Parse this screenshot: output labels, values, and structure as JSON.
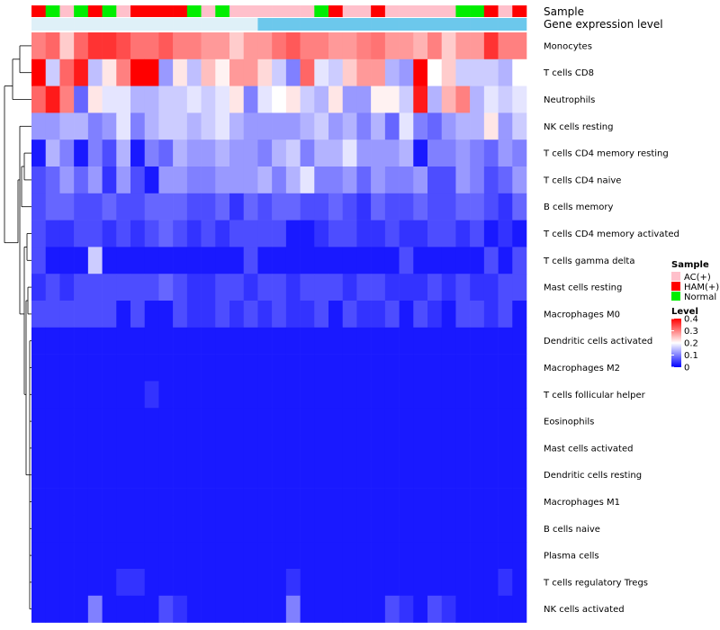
{
  "chart_data": {
    "type": "heatmap",
    "title": "",
    "annotation_labels": {
      "sample": "Sample",
      "gene_expression": "Gene expression level"
    },
    "sample_legend": {
      "title": "Sample",
      "entries": [
        {
          "label": "AC(+)",
          "color": "#ffc0cb"
        },
        {
          "label": "HAM(+)",
          "color": "#ff0000"
        },
        {
          "label": "Normal",
          "color": "#00ee00"
        }
      ]
    },
    "level_legend": {
      "title": "Level",
      "ticks": [
        "0.4",
        "0.3",
        "0.2",
        "0.1",
        "0"
      ],
      "tick_values": [
        0.4,
        0.3,
        0.2,
        0.1,
        0
      ]
    },
    "color_scale": {
      "min": 0,
      "max": 0.4,
      "low": "#0000ff",
      "mid": "#ffffff",
      "high": "#ff0000"
    },
    "sample_groups": [
      "HAM(+)",
      "Normal",
      "AC(+)",
      "Normal",
      "HAM(+)",
      "Normal",
      "AC(+)",
      "HAM(+)",
      "HAM(+)",
      "HAM(+)",
      "HAM(+)",
      "Normal",
      "AC(+)",
      "Normal",
      "AC(+)",
      "AC(+)",
      "AC(+)",
      "AC(+)",
      "AC(+)",
      "AC(+)",
      "Normal",
      "HAM(+)",
      "AC(+)",
      "AC(+)",
      "HAM(+)",
      "AC(+)",
      "AC(+)",
      "AC(+)",
      "AC(+)",
      "AC(+)",
      "Normal",
      "Normal",
      "HAM(+)",
      "AC(+)",
      "HAM(+)"
    ],
    "gene_expression_groups": [
      "low",
      "low",
      "low",
      "low",
      "low",
      "low",
      "low",
      "low",
      "low",
      "low",
      "low",
      "low",
      "low",
      "low",
      "low",
      "low",
      "high",
      "high",
      "high",
      "high",
      "high",
      "high",
      "high",
      "high",
      "high",
      "high",
      "high",
      "high",
      "high",
      "high",
      "high",
      "high",
      "high",
      "high",
      "high"
    ],
    "gene_expression_colors": {
      "low": "#dff0f8",
      "high": "#6cc8ec"
    },
    "rows": [
      {
        "name": "Monocytes",
        "values": [
          0.3,
          0.32,
          0.24,
          0.32,
          0.36,
          0.36,
          0.34,
          0.31,
          0.31,
          0.33,
          0.3,
          0.3,
          0.28,
          0.28,
          0.24,
          0.28,
          0.28,
          0.31,
          0.33,
          0.3,
          0.3,
          0.28,
          0.28,
          0.3,
          0.31,
          0.28,
          0.28,
          0.26,
          0.3,
          0.24,
          0.28,
          0.28,
          0.36,
          0.3,
          0.3
        ]
      },
      {
        "name": "T cells CD8",
        "values": [
          0.4,
          0.16,
          0.32,
          0.38,
          0.15,
          0.22,
          0.3,
          0.4,
          0.4,
          0.12,
          0.22,
          0.15,
          0.25,
          0.21,
          0.28,
          0.28,
          0.23,
          0.16,
          0.1,
          0.32,
          0.18,
          0.16,
          0.24,
          0.28,
          0.28,
          0.14,
          0.12,
          0.4,
          0.2,
          0.24,
          0.16,
          0.16,
          0.16,
          0.14,
          0.2
        ]
      },
      {
        "name": "Neutrophils",
        "values": [
          0.32,
          0.38,
          0.3,
          0.08,
          0.22,
          0.18,
          0.18,
          0.14,
          0.14,
          0.16,
          0.16,
          0.18,
          0.16,
          0.18,
          0.22,
          0.1,
          0.18,
          0.2,
          0.22,
          0.16,
          0.14,
          0.22,
          0.12,
          0.12,
          0.21,
          0.21,
          0.16,
          0.38,
          0.14,
          0.26,
          0.3,
          0.14,
          0.18,
          0.16,
          0.18
        ]
      },
      {
        "name": "NK cells resting",
        "values": [
          0.12,
          0.12,
          0.14,
          0.14,
          0.1,
          0.12,
          0.18,
          0.1,
          0.14,
          0.16,
          0.16,
          0.14,
          0.16,
          0.18,
          0.14,
          0.12,
          0.12,
          0.12,
          0.12,
          0.14,
          0.16,
          0.12,
          0.14,
          0.1,
          0.14,
          0.08,
          0.18,
          0.1,
          0.08,
          0.12,
          0.14,
          0.14,
          0.22,
          0.12,
          0.16
        ]
      },
      {
        "name": "T cells CD4 memory resting",
        "values": [
          0.02,
          0.14,
          0.1,
          0.02,
          0.1,
          0.06,
          0.14,
          0.02,
          0.1,
          0.08,
          0.14,
          0.12,
          0.12,
          0.14,
          0.12,
          0.12,
          0.1,
          0.14,
          0.16,
          0.1,
          0.14,
          0.14,
          0.18,
          0.12,
          0.12,
          0.12,
          0.14,
          0.02,
          0.1,
          0.1,
          0.12,
          0.1,
          0.08,
          0.12,
          0.1
        ]
      },
      {
        "name": "T cells CD4 naive",
        "values": [
          0.06,
          0.08,
          0.12,
          0.08,
          0.12,
          0.04,
          0.12,
          0.06,
          0.02,
          0.12,
          0.12,
          0.1,
          0.1,
          0.12,
          0.12,
          0.12,
          0.14,
          0.1,
          0.14,
          0.18,
          0.1,
          0.1,
          0.12,
          0.08,
          0.12,
          0.1,
          0.1,
          0.12,
          0.06,
          0.06,
          0.12,
          0.1,
          0.06,
          0.08,
          0.12
        ]
      },
      {
        "name": "B cells memory",
        "values": [
          0.06,
          0.08,
          0.08,
          0.06,
          0.06,
          0.08,
          0.06,
          0.06,
          0.08,
          0.08,
          0.08,
          0.06,
          0.06,
          0.08,
          0.04,
          0.08,
          0.06,
          0.08,
          0.08,
          0.06,
          0.06,
          0.08,
          0.06,
          0.04,
          0.08,
          0.06,
          0.06,
          0.08,
          0.06,
          0.06,
          0.08,
          0.08,
          0.06,
          0.04,
          0.08
        ]
      },
      {
        "name": "T cells CD4 memory activated",
        "values": [
          0.06,
          0.04,
          0.04,
          0.06,
          0.06,
          0.04,
          0.06,
          0.04,
          0.06,
          0.08,
          0.06,
          0.04,
          0.06,
          0.04,
          0.06,
          0.06,
          0.06,
          0.06,
          0.02,
          0.02,
          0.04,
          0.06,
          0.06,
          0.04,
          0.04,
          0.06,
          0.04,
          0.04,
          0.06,
          0.06,
          0.04,
          0.06,
          0.02,
          0.04,
          0.02
        ]
      },
      {
        "name": "T cells gamma delta",
        "values": [
          0.06,
          0.02,
          0.02,
          0.02,
          0.16,
          0.02,
          0.02,
          0.02,
          0.02,
          0.02,
          0.02,
          0.02,
          0.02,
          0.02,
          0.02,
          0.06,
          0.02,
          0.02,
          0.02,
          0.02,
          0.02,
          0.02,
          0.02,
          0.02,
          0.02,
          0.02,
          0.06,
          0.02,
          0.02,
          0.02,
          0.02,
          0.02,
          0.06,
          0.02,
          0.06
        ]
      },
      {
        "name": "Mast cells resting",
        "values": [
          0.04,
          0.06,
          0.04,
          0.06,
          0.06,
          0.06,
          0.06,
          0.06,
          0.06,
          0.08,
          0.06,
          0.04,
          0.04,
          0.06,
          0.06,
          0.04,
          0.06,
          0.06,
          0.04,
          0.06,
          0.06,
          0.06,
          0.04,
          0.06,
          0.06,
          0.04,
          0.04,
          0.04,
          0.06,
          0.04,
          0.06,
          0.04,
          0.04,
          0.06,
          0.06
        ]
      },
      {
        "name": "Macrophages M0",
        "values": [
          0.06,
          0.06,
          0.06,
          0.06,
          0.06,
          0.06,
          0.02,
          0.06,
          0.02,
          0.02,
          0.06,
          0.04,
          0.04,
          0.06,
          0.04,
          0.06,
          0.04,
          0.06,
          0.04,
          0.04,
          0.06,
          0.02,
          0.06,
          0.04,
          0.04,
          0.06,
          0.02,
          0.06,
          0.04,
          0.02,
          0.06,
          0.06,
          0.04,
          0.06,
          0.02
        ]
      },
      {
        "name": "Dendritic cells activated",
        "values": [
          0.02,
          0.02,
          0.02,
          0.02,
          0.02,
          0.02,
          0.02,
          0.02,
          0.02,
          0.02,
          0.02,
          0.02,
          0.02,
          0.02,
          0.02,
          0.02,
          0.02,
          0.02,
          0.02,
          0.02,
          0.02,
          0.02,
          0.02,
          0.02,
          0.02,
          0.02,
          0.02,
          0.02,
          0.02,
          0.02,
          0.02,
          0.02,
          0.02,
          0.02,
          0.02
        ]
      },
      {
        "name": "Macrophages M2",
        "values": [
          0.02,
          0.02,
          0.02,
          0.02,
          0.02,
          0.02,
          0.02,
          0.02,
          0.02,
          0.02,
          0.02,
          0.02,
          0.02,
          0.02,
          0.02,
          0.02,
          0.02,
          0.02,
          0.02,
          0.02,
          0.02,
          0.02,
          0.02,
          0.02,
          0.02,
          0.02,
          0.02,
          0.02,
          0.02,
          0.02,
          0.02,
          0.02,
          0.02,
          0.02,
          0.02
        ]
      },
      {
        "name": "T cells follicular helper",
        "values": [
          0.02,
          0.02,
          0.02,
          0.02,
          0.02,
          0.02,
          0.02,
          0.02,
          0.04,
          0.02,
          0.02,
          0.02,
          0.02,
          0.02,
          0.02,
          0.02,
          0.02,
          0.02,
          0.02,
          0.02,
          0.02,
          0.02,
          0.02,
          0.02,
          0.02,
          0.02,
          0.02,
          0.02,
          0.02,
          0.02,
          0.02,
          0.02,
          0.02,
          0.02,
          0.02
        ]
      },
      {
        "name": "Eosinophils",
        "values": [
          0.02,
          0.02,
          0.02,
          0.02,
          0.02,
          0.02,
          0.02,
          0.02,
          0.02,
          0.02,
          0.02,
          0.02,
          0.02,
          0.02,
          0.02,
          0.02,
          0.02,
          0.02,
          0.02,
          0.02,
          0.02,
          0.02,
          0.02,
          0.02,
          0.02,
          0.02,
          0.02,
          0.02,
          0.02,
          0.02,
          0.02,
          0.02,
          0.02,
          0.02,
          0.02
        ]
      },
      {
        "name": "Mast cells activated",
        "values": [
          0.02,
          0.02,
          0.02,
          0.02,
          0.02,
          0.02,
          0.02,
          0.02,
          0.02,
          0.02,
          0.02,
          0.02,
          0.02,
          0.02,
          0.02,
          0.02,
          0.02,
          0.02,
          0.02,
          0.02,
          0.02,
          0.02,
          0.02,
          0.02,
          0.02,
          0.02,
          0.02,
          0.02,
          0.02,
          0.02,
          0.02,
          0.02,
          0.02,
          0.02,
          0.02
        ]
      },
      {
        "name": "Dendritic cells resting",
        "values": [
          0.02,
          0.02,
          0.02,
          0.02,
          0.02,
          0.02,
          0.02,
          0.02,
          0.02,
          0.02,
          0.02,
          0.02,
          0.02,
          0.02,
          0.02,
          0.02,
          0.02,
          0.02,
          0.02,
          0.02,
          0.02,
          0.02,
          0.02,
          0.02,
          0.02,
          0.02,
          0.02,
          0.02,
          0.02,
          0.02,
          0.02,
          0.02,
          0.02,
          0.02,
          0.02
        ]
      },
      {
        "name": "Macrophages M1",
        "values": [
          0.02,
          0.02,
          0.02,
          0.02,
          0.02,
          0.02,
          0.02,
          0.02,
          0.02,
          0.02,
          0.02,
          0.02,
          0.02,
          0.02,
          0.02,
          0.02,
          0.02,
          0.02,
          0.02,
          0.02,
          0.02,
          0.02,
          0.02,
          0.02,
          0.02,
          0.02,
          0.02,
          0.02,
          0.02,
          0.02,
          0.02,
          0.02,
          0.02,
          0.02,
          0.02
        ]
      },
      {
        "name": "B cells naive",
        "values": [
          0.02,
          0.02,
          0.02,
          0.02,
          0.02,
          0.02,
          0.02,
          0.02,
          0.02,
          0.02,
          0.02,
          0.02,
          0.02,
          0.02,
          0.02,
          0.02,
          0.02,
          0.02,
          0.02,
          0.02,
          0.02,
          0.02,
          0.02,
          0.02,
          0.02,
          0.02,
          0.02,
          0.02,
          0.02,
          0.02,
          0.02,
          0.02,
          0.02,
          0.02,
          0.02
        ]
      },
      {
        "name": "Plasma cells",
        "values": [
          0.02,
          0.02,
          0.02,
          0.02,
          0.02,
          0.02,
          0.02,
          0.02,
          0.02,
          0.02,
          0.02,
          0.02,
          0.02,
          0.02,
          0.02,
          0.02,
          0.02,
          0.02,
          0.02,
          0.02,
          0.02,
          0.02,
          0.02,
          0.02,
          0.02,
          0.02,
          0.02,
          0.02,
          0.02,
          0.02,
          0.02,
          0.02,
          0.02,
          0.02,
          0.02
        ]
      },
      {
        "name": "T cells regulatory  Tregs",
        "values": [
          0.02,
          0.02,
          0.02,
          0.02,
          0.02,
          0.02,
          0.04,
          0.04,
          0.02,
          0.02,
          0.02,
          0.02,
          0.02,
          0.02,
          0.02,
          0.02,
          0.02,
          0.02,
          0.04,
          0.02,
          0.02,
          0.02,
          0.02,
          0.02,
          0.02,
          0.02,
          0.02,
          0.02,
          0.02,
          0.02,
          0.02,
          0.02,
          0.02,
          0.04,
          0.02
        ]
      },
      {
        "name": "NK cells activated",
        "values": [
          0.02,
          0.02,
          0.02,
          0.02,
          0.1,
          0.02,
          0.02,
          0.02,
          0.02,
          0.06,
          0.04,
          0.02,
          0.02,
          0.02,
          0.02,
          0.02,
          0.02,
          0.02,
          0.1,
          0.02,
          0.02,
          0.02,
          0.02,
          0.02,
          0.02,
          0.06,
          0.04,
          0.02,
          0.06,
          0.04,
          0.02,
          0.02,
          0.02,
          0.02,
          0.02
        ]
      }
    ]
  }
}
